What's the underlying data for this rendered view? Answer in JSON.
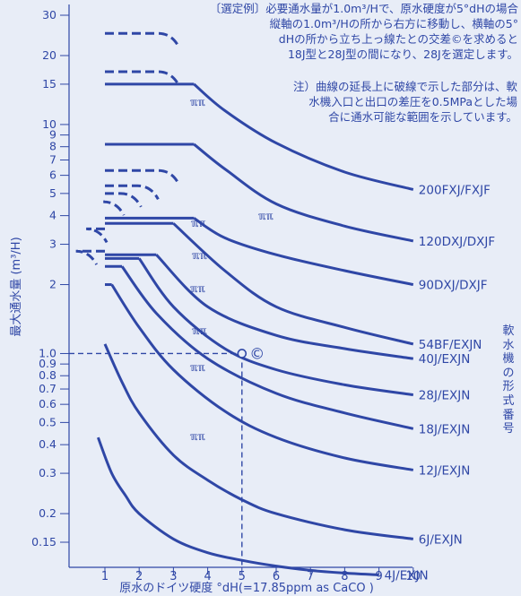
{
  "chart_data": {
    "type": "line",
    "xlabel": "原水のドイツ硬度 °dH(=17.85ppm as CaCO )",
    "ylabel": "最大通水量 (m³/H)",
    "xlim": [
      0.3,
      10.6
    ],
    "ylim": [
      0.105,
      32
    ],
    "y_scale": "log",
    "x_ticks": [
      1,
      2,
      3,
      4,
      5,
      6,
      7,
      8,
      9,
      10
    ],
    "y_ticks": [
      {
        "value": 30,
        "label": "30"
      },
      {
        "value": 20,
        "label": "20"
      },
      {
        "value": 15,
        "label": "15"
      },
      {
        "value": 10,
        "label": "10"
      },
      {
        "value": 9,
        "label": "9"
      },
      {
        "value": 8,
        "label": "8"
      },
      {
        "value": 7,
        "label": "7"
      },
      {
        "value": 6,
        "label": "6"
      },
      {
        "value": 5,
        "label": "5"
      },
      {
        "value": 4,
        "label": "4"
      },
      {
        "value": 3,
        "label": "3"
      },
      {
        "value": 2,
        "label": "2"
      },
      {
        "value": 1.0,
        "label": "1.0"
      },
      {
        "value": 0.9,
        "label": "0.9"
      },
      {
        "value": 0.8,
        "label": "0.8"
      },
      {
        "value": 0.7,
        "label": "0.7"
      },
      {
        "value": 0.6,
        "label": "0.6"
      },
      {
        "value": 0.5,
        "label": "0.5"
      },
      {
        "value": 0.4,
        "label": "0.4"
      },
      {
        "value": 0.3,
        "label": "0.3"
      },
      {
        "value": 0.2,
        "label": "0.2"
      },
      {
        "value": 0.15,
        "label": "0.15"
      }
    ],
    "series": [
      {
        "name": "200FXJ/FXJF",
        "flat_dashed": 25,
        "flat_solid": 15,
        "x": [
          3.6,
          4.5,
          6,
          8,
          10
        ],
        "y": [
          15,
          11.5,
          8.3,
          6.2,
          5.2
        ]
      },
      {
        "name": "120DXJ/DXJF",
        "flat_dashed": 17,
        "flat_solid": 8.2,
        "x": [
          3.6,
          4.5,
          6,
          8,
          10
        ],
        "y": [
          8.2,
          6.4,
          4.5,
          3.6,
          3.1
        ]
      },
      {
        "name": "90DXJ/DXJF",
        "flat_dashed": 6.3,
        "flat_solid": 3.9,
        "x": [
          3.6,
          4.5,
          6,
          8,
          10
        ],
        "y": [
          3.9,
          3.2,
          2.7,
          2.3,
          2.0
        ]
      },
      {
        "name": "54BF/EXJN",
        "flat_dashed": 5.4,
        "flat_solid": 3.7,
        "x": [
          3,
          4.5,
          6,
          8,
          10
        ],
        "y": [
          3.7,
          2.3,
          1.6,
          1.3,
          1.1
        ]
      },
      {
        "name": "40J/EXJN",
        "flat_dashed": 5.0,
        "flat_solid": 2.7,
        "x": [
          2.5,
          4,
          6,
          8,
          10
        ],
        "y": [
          2.7,
          1.6,
          1.2,
          1.05,
          0.95
        ]
      },
      {
        "name": "28J/EXJN",
        "flat_dashed": 4.6,
        "flat_solid": 2.6,
        "x": [
          2,
          3,
          4.5,
          6,
          8,
          10
        ],
        "y": [
          2.6,
          1.6,
          1.05,
          0.85,
          0.73,
          0.66
        ]
      },
      {
        "name": "18J/EXJN",
        "flat_dashed": 3.5,
        "flat_solid": 2.4,
        "x": [
          1.5,
          2.5,
          4,
          6,
          8,
          10
        ],
        "y": [
          2.4,
          1.5,
          0.95,
          0.67,
          0.55,
          0.47
        ]
      },
      {
        "name": "12J/EXJN",
        "flat_dashed": 2.8,
        "flat_solid": 2.0,
        "x": [
          1.2,
          2,
          3,
          4.5,
          6,
          8,
          10
        ],
        "y": [
          2.0,
          1.3,
          0.85,
          0.56,
          0.43,
          0.35,
          0.31
        ]
      },
      {
        "name": "6J/EXJN",
        "x": [
          1,
          1.5,
          2,
          3,
          4,
          5,
          6,
          8,
          10
        ],
        "y": [
          1.1,
          0.75,
          0.55,
          0.36,
          0.28,
          0.23,
          0.2,
          0.17,
          0.155
        ]
      },
      {
        "name": "4J/EXJN",
        "x": [
          0.8,
          1.2,
          1.6,
          2,
          3,
          4,
          5,
          6,
          7,
          8,
          9
        ],
        "y": [
          0.43,
          0.3,
          0.24,
          0.2,
          0.155,
          0.135,
          0.125,
          0.118,
          0.113,
          0.11,
          0.108
        ]
      }
    ],
    "selection_point": {
      "x": 5,
      "y": 1.0,
      "label": "©"
    },
    "selected_model": "28J"
  },
  "notes": {
    "example": "〔選定例〕必要通水量が1.0m³/Hで、原水硬度が5°dHの場合\n縦軸の1.0m³/Hの所から右方に移動し、横軸の5°\ndHの所から立ち上っ線たとの交差©を求めると\n18J型と28J型の間になり、28Jを選定します。",
    "extension": "注）曲線の延長上に破線で示した部分は、軟\n水機入口と出口の差圧を0.5MPaとした場\n合に通水可能な範囲を示しています。"
  },
  "side_label": "軟水機の形式番号",
  "marker_label": "ℼℼ",
  "colors": {
    "line": "#2f47a6",
    "background": "#e8edf7"
  }
}
